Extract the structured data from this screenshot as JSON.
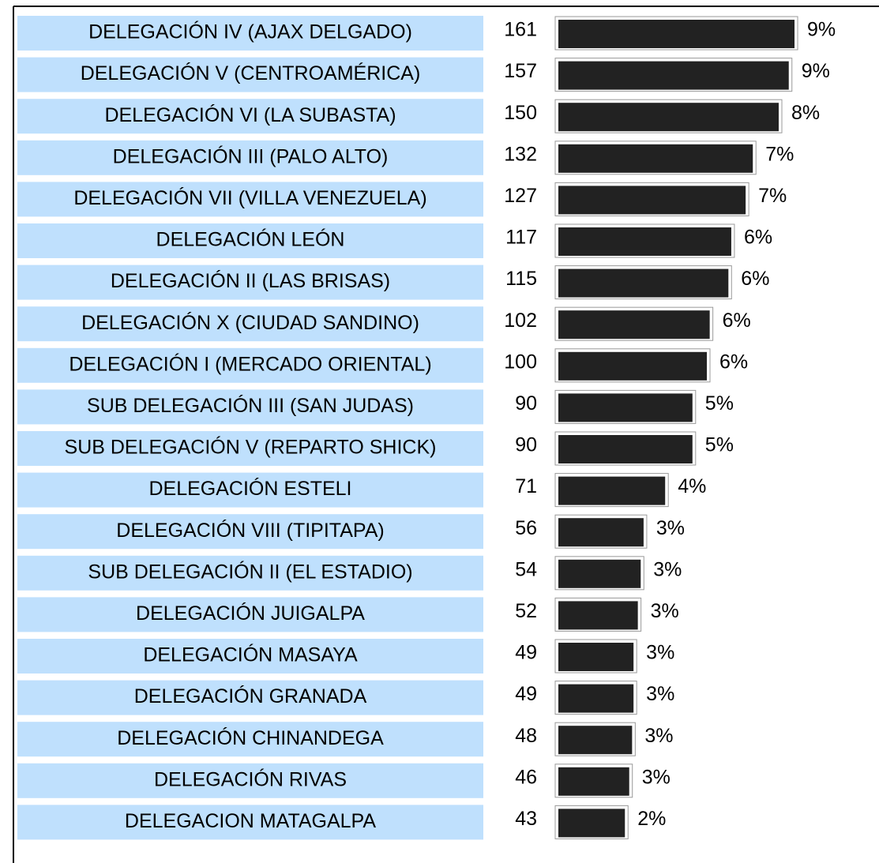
{
  "chart_data": {
    "type": "bar",
    "orientation": "horizontal",
    "categories": [
      "DELEGACIÓN IV (AJAX DELGADO)",
      "DELEGACIÓN V (CENTROAMÉRICA)",
      "DELEGACIÓN VI (LA SUBASTA)",
      "DELEGACIÓN III (PALO ALTO)",
      "DELEGACIÓN VII (VILLA VENEZUELA)",
      "DELEGACIÓN LEÓN",
      "DELEGACIÓN II (LAS BRISAS)",
      "DELEGACIÓN X (CIUDAD SANDINO)",
      "DELEGACIÓN I (MERCADO ORIENTAL)",
      "SUB DELEGACIÓN III (SAN JUDAS)",
      "SUB DELEGACIÓN V (REPARTO SHICK)",
      "DELEGACIÓN ESTELI",
      "DELEGACIÓN VIII (TIPITAPA)",
      "SUB DELEGACIÓN II (EL ESTADIO)",
      "DELEGACIÓN JUIGALPA",
      "DELEGACIÓN MASAYA",
      "DELEGACIÓN GRANADA",
      "DELEGACIÓN CHINANDEGA",
      "DELEGACIÓN RIVAS",
      "DELEGACION MATAGALPA"
    ],
    "values": [
      161,
      157,
      150,
      132,
      127,
      117,
      115,
      102,
      100,
      90,
      90,
      71,
      56,
      54,
      52,
      49,
      49,
      48,
      46,
      43
    ],
    "percent_labels": [
      "9%",
      "9%",
      "8%",
      "7%",
      "7%",
      "6%",
      "6%",
      "6%",
      "6%",
      "5%",
      "5%",
      "4%",
      "3%",
      "3%",
      "3%",
      "3%",
      "3%",
      "3%",
      "3%",
      "2%"
    ],
    "color": "#222222",
    "label_color": "#bfe0fd"
  }
}
